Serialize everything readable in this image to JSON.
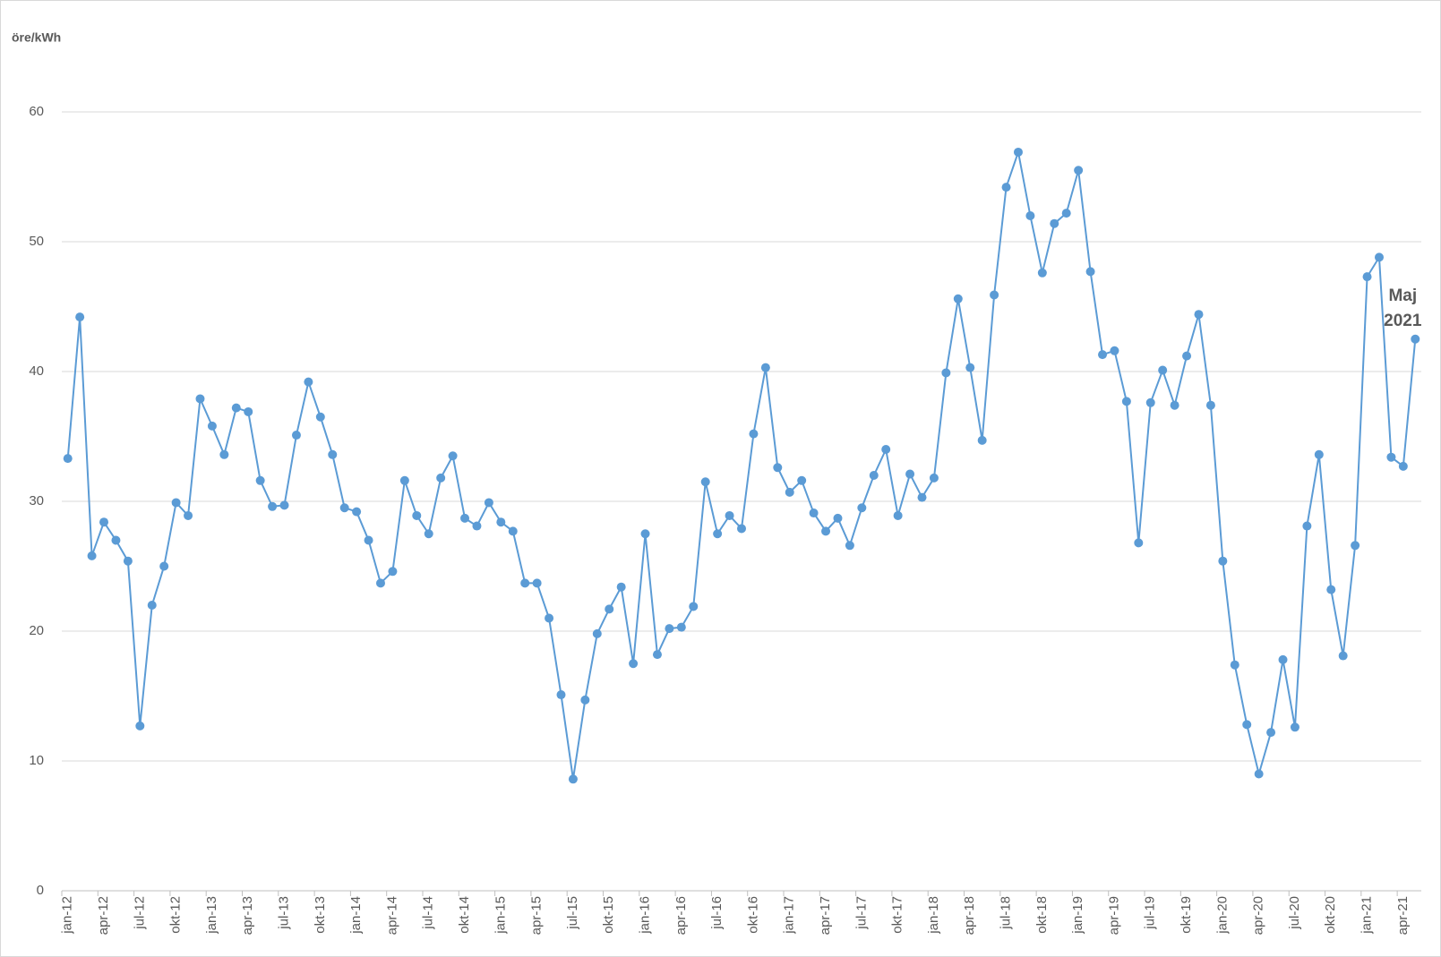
{
  "chart_data": {
    "type": "line",
    "y_label": "öre/kWh",
    "annotation": [
      "Maj",
      "2021"
    ],
    "color": "#5b9bd5",
    "grid": true,
    "ylim": [
      0,
      60
    ],
    "yticks": [
      0,
      10,
      20,
      30,
      40,
      50,
      60
    ],
    "categories": [
      "jan-12",
      null,
      null,
      "apr-12",
      null,
      null,
      "jul-12",
      null,
      null,
      "okt-12",
      null,
      null,
      "jan-13",
      null,
      null,
      "apr-13",
      null,
      null,
      "jul-13",
      null,
      null,
      "okt-13",
      null,
      null,
      "jan-14",
      null,
      null,
      "apr-14",
      null,
      null,
      "jul-14",
      null,
      null,
      "okt-14",
      null,
      null,
      "jan-15",
      null,
      null,
      "apr-15",
      null,
      null,
      "jul-15",
      null,
      null,
      "okt-15",
      null,
      null,
      "jan-16",
      null,
      null,
      "apr-16",
      null,
      null,
      "jul-16",
      null,
      null,
      "okt-16",
      null,
      null,
      "jan-17",
      null,
      null,
      "apr-17",
      null,
      null,
      "jul-17",
      null,
      null,
      "okt-17",
      null,
      null,
      "jan-18",
      null,
      null,
      "apr-18",
      null,
      null,
      "jul-18",
      null,
      null,
      "okt-18",
      null,
      null,
      "jan-19",
      null,
      null,
      "apr-19",
      null,
      null,
      "jul-19",
      null,
      null,
      "okt-19",
      null,
      null,
      "jan-20",
      null,
      null,
      "apr-20",
      null,
      null,
      "jul-20",
      null,
      null,
      "okt-20",
      null,
      null,
      "jan-21",
      null,
      null,
      "apr-21",
      null
    ],
    "values": [
      33.3,
      44.2,
      25.8,
      28.4,
      27.0,
      25.4,
      12.7,
      22.0,
      25.0,
      29.9,
      28.9,
      37.9,
      35.8,
      33.6,
      37.2,
      36.9,
      31.6,
      29.6,
      29.7,
      35.1,
      39.2,
      36.5,
      33.6,
      29.5,
      29.2,
      27.0,
      23.7,
      24.6,
      31.6,
      28.9,
      27.5,
      31.8,
      33.5,
      28.7,
      28.1,
      29.9,
      28.4,
      27.7,
      23.7,
      23.7,
      21.0,
      15.1,
      8.6,
      14.7,
      19.8,
      21.7,
      23.4,
      17.5,
      27.5,
      18.2,
      20.2,
      20.3,
      21.9,
      31.5,
      27.5,
      28.9,
      27.9,
      35.2,
      40.3,
      32.6,
      30.7,
      31.6,
      29.1,
      27.7,
      28.7,
      26.6,
      29.5,
      32.0,
      34.0,
      28.9,
      32.1,
      30.3,
      31.8,
      39.9,
      45.6,
      40.3,
      34.7,
      45.9,
      54.2,
      56.9,
      52.0,
      47.6,
      51.4,
      52.2,
      55.5,
      47.7,
      41.3,
      41.6,
      37.7,
      26.8,
      37.6,
      40.1,
      37.4,
      41.2,
      44.4,
      37.4,
      25.4,
      17.4,
      12.8,
      9.0,
      12.2,
      17.8,
      12.6,
      28.1,
      33.6,
      23.2,
      18.1,
      26.6,
      47.3,
      48.8,
      33.4,
      32.7,
      42.5
    ]
  }
}
